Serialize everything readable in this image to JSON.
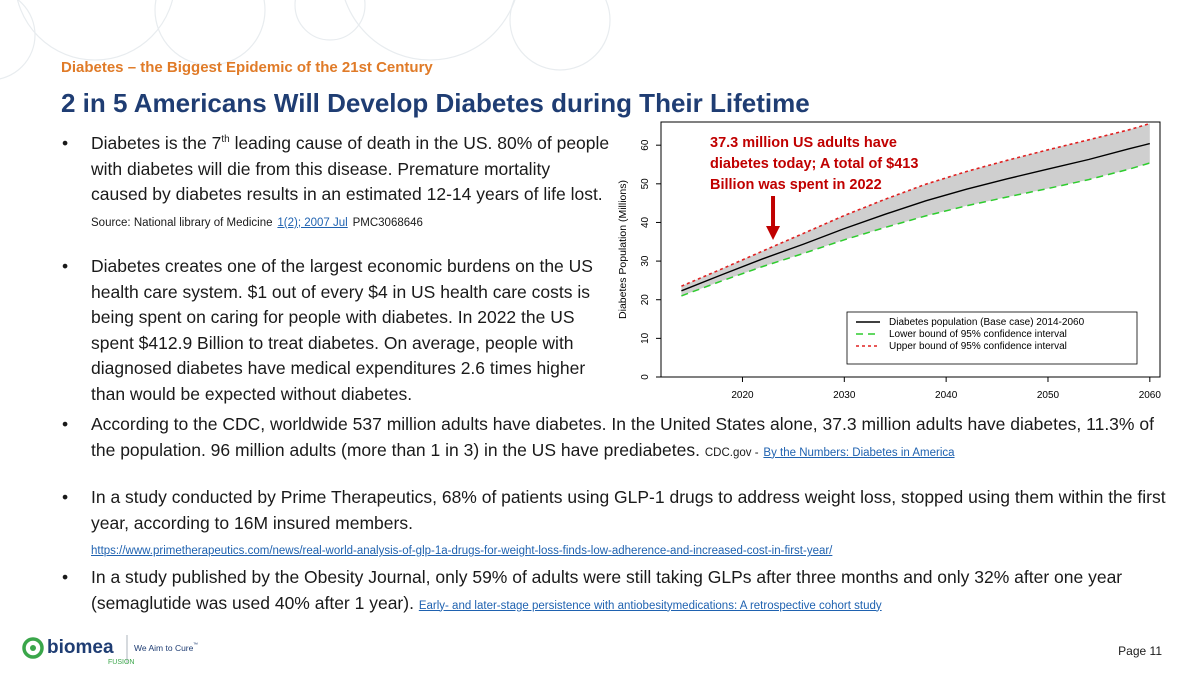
{
  "kicker": "Diabetes – the Biggest Epidemic of the 21st Century",
  "title": "2 in 5 Americans Will Develop Diabetes during Their Lifetime",
  "bullets": {
    "b1": {
      "text_a": "Diabetes is the 7",
      "sup": "th",
      "text_b": " leading cause of death in the US. 80% of people with diabetes will die from this disease. Premature mortality caused by diabetes results in an estimated 12-14 years of life lost.",
      "source_label": "Source: National library of Medicine",
      "source_link": "1(2); 2007 Jul",
      "source_tail": "PMC3068646"
    },
    "b2": {
      "text": "Diabetes creates one of the largest economic burdens on the US health care system. $1 out of every $4 in US health care costs is being spent on caring for people with diabetes. In 2022 the US spent $412.9 Billion to treat diabetes. On average, people with diagnosed diabetes have medical expenditures 2.6 times higher than would be expected without diabetes."
    },
    "b3": {
      "text": "According to the CDC, worldwide 537 million adults have diabetes. In the United States alone, 37.3 million adults have diabetes, 11.3% of the population. 96 million adults (more than 1 in 3) in the US have prediabetes.",
      "source_label": "CDC.gov -",
      "source_link": "By the Numbers: Diabetes in America"
    },
    "b4": {
      "text": "In a study conducted by Prime Therapeutics, 68% of patients using GLP-1 drugs to address weight loss, stopped using them within the first year, according to 16M insured members.",
      "source_link": "https://www.primetherapeutics.com/news/real-world-analysis-of-glp-1a-drugs-for-weight-loss-finds-low-adherence-and-increased-cost-in-first-year/"
    },
    "b5": {
      "text": "In a study published by the Obesity Journal, only 59% of adults were still taking GLPs after three months and only 32% after one year (semaglutide was used 40% after 1 year).",
      "source_link": "Early- and later-stage persistence with antiobesitymedications: A retrospective cohort study"
    }
  },
  "chart_data": {
    "type": "line",
    "xlabel": "",
    "ylabel": "Diabetes Population (Millions)",
    "xlim": [
      2012,
      2061
    ],
    "ylim": [
      0,
      66
    ],
    "xticks": [
      2020,
      2030,
      2040,
      2050,
      2060
    ],
    "yticks": [
      0,
      10,
      20,
      30,
      40,
      50,
      60
    ],
    "x": [
      2014,
      2018,
      2022,
      2026,
      2030,
      2034,
      2038,
      2042,
      2046,
      2050,
      2054,
      2058,
      2060
    ],
    "series": [
      {
        "name": "Diabetes population (Base case) 2014-2060",
        "style": "solid",
        "color": "#000000",
        "values": [
          22.3,
          26.5,
          30.6,
          34.4,
          38.4,
          42.1,
          45.6,
          48.6,
          51.3,
          53.8,
          56.3,
          59.1,
          60.4
        ]
      },
      {
        "name": "Lower bound of 95% confidence interval",
        "style": "dashed",
        "color": "#2ecc2e",
        "values": [
          21.0,
          24.9,
          28.6,
          32.0,
          35.5,
          38.7,
          41.7,
          44.3,
          46.6,
          48.8,
          51.1,
          53.8,
          55.4
        ]
      },
      {
        "name": "Upper bound of 95% confidence interval",
        "style": "dotted",
        "color": "#e02020",
        "values": [
          23.5,
          28.0,
          32.6,
          37.2,
          41.8,
          46.0,
          49.9,
          53.2,
          56.1,
          58.8,
          61.4,
          64.0,
          65.6
        ]
      }
    ],
    "legend_position": "bottom-right",
    "annotation": {
      "text_lines": [
        "37.3 million US adults have",
        "diabetes today; A total of $413",
        "Billion was spent in 2022"
      ],
      "arrow_target_x": 2023,
      "color": "#c00000"
    }
  },
  "footer": {
    "brand": "biomea",
    "sub": "FUSION",
    "tagline": "We Aim to Cure",
    "tm": "™",
    "page": "Page 11"
  },
  "colors": {
    "title": "#1f3d73",
    "kicker": "#e07b28",
    "link": "#1f62b0",
    "annotation": "#c00000",
    "brand_green": "#3aa64a"
  }
}
